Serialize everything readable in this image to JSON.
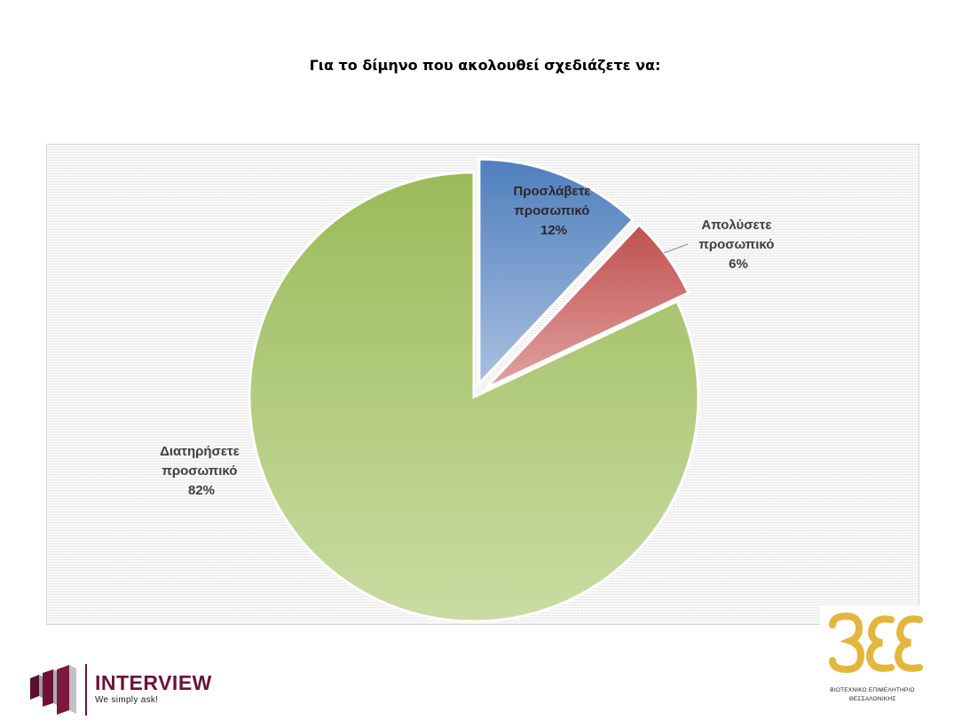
{
  "title": "Για το δίμηνο που ακολουθεί σχεδιάζετε να:",
  "chart_data": {
    "type": "pie",
    "title": "Για το δίμηνο που ακολουθεί σχεδιάζετε να:",
    "slices": [
      {
        "label_line1": "Προσλάβετε",
        "label_line2": "προσωπικό",
        "pct_label": "12%",
        "value": 12,
        "color": "#4f81bd",
        "exploded": true
      },
      {
        "label_line1": "Απολύσετε",
        "label_line2": "προσωπικό",
        "pct_label": "6%",
        "value": 6,
        "color": "#c0504d",
        "exploded": true
      },
      {
        "label_line1": "Διατηρήσετε",
        "label_line2": "προσωπικό",
        "pct_label": "82%",
        "value": 82,
        "color": "#9bbb59",
        "exploded": false
      }
    ]
  },
  "logos": {
    "interview": {
      "name": "INTERVIEW",
      "tagline": "We simply ask!",
      "color": "#6b1437"
    },
    "bee": {
      "mark": "ΒΕΘ",
      "line1": "ΒΙΟΤΕΧΝΙΚΟ ΕΠΙΜΕΛΗΤΗΡΙΟ",
      "line2": "ΘΕΣΣΑΛΟΝΙΚΗΣ",
      "color": "#e3b73d"
    }
  }
}
